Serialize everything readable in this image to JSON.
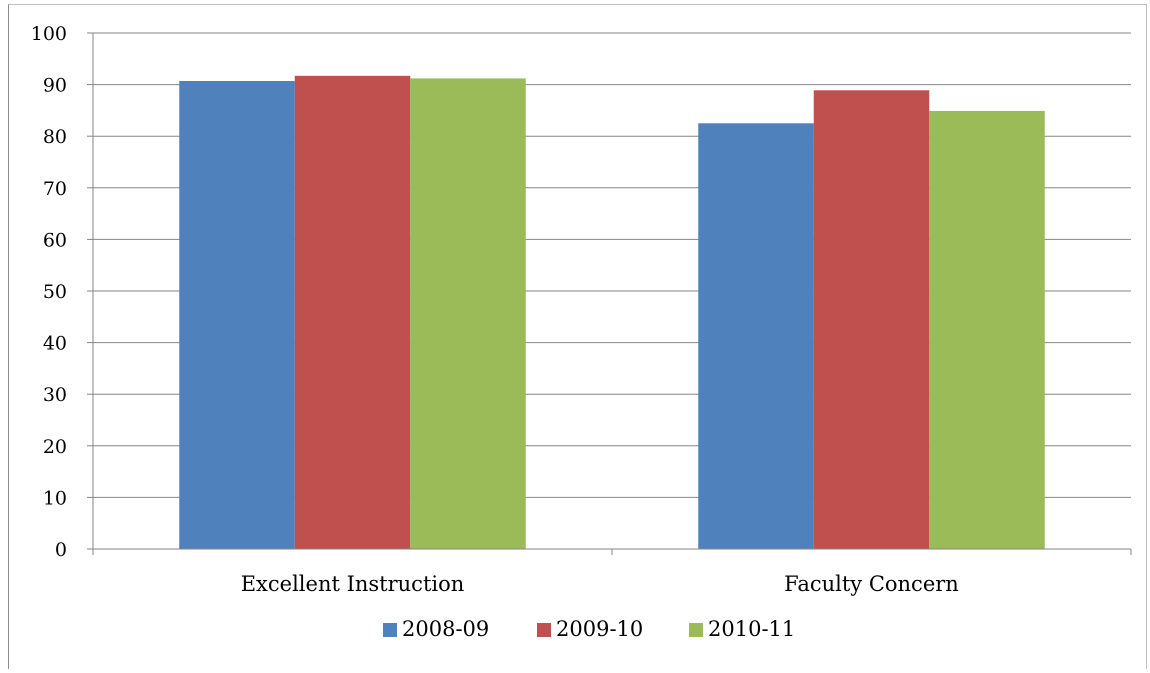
{
  "chart_data": {
    "type": "bar",
    "title": "",
    "xlabel": "",
    "ylabel": "",
    "categories": [
      "Excellent Instruction",
      "Faculty Concern"
    ],
    "series": [
      {
        "name": "2008-09",
        "values": [
          90.7,
          82.5
        ],
        "color": "#4f81bd"
      },
      {
        "name": "2009-10",
        "values": [
          91.7,
          88.9
        ],
        "color": "#c0504d"
      },
      {
        "name": "2010-11",
        "values": [
          91.2,
          84.9
        ],
        "color": "#9bbb59"
      }
    ],
    "ylim": [
      0,
      100
    ],
    "yticks": [
      0,
      10,
      20,
      30,
      40,
      50,
      60,
      70,
      80,
      90,
      100
    ],
    "grid": true,
    "legend_position": "bottom"
  }
}
